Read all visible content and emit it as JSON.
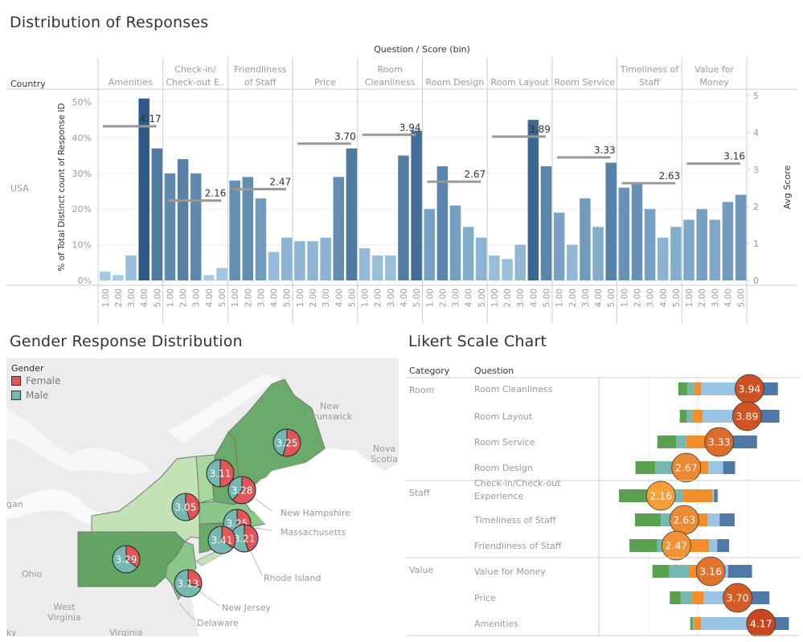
{
  "dashboard": {
    "top_title": "Distribution of Responses",
    "map_title": "Gender Response Distribution",
    "likert_title": "Likert Scale Chart"
  },
  "colors": {
    "bar_light": "#a9cfe8",
    "bar_dark": "#2c5985",
    "avg_line": "#999999",
    "female": "#e15759",
    "male": "#76b7b2",
    "likert_1": "#59a14f",
    "likert_2": "#76b7b2",
    "likert_3": "#f28e2b",
    "likert_4": "#9ac4e3",
    "likert_5": "#4e79a7",
    "state_dark": "#6aaa6a",
    "state_mid": "#8cc78a",
    "state_light": "#c3e3b5"
  },
  "chart_data": [
    {
      "type": "bar",
      "title": "Distribution of Responses",
      "column_header": "Question / Score (bin)",
      "row_header": "Country",
      "row_label": "USA",
      "ylabel": "% of Total Distinct count of Response ID",
      "y2label": "Avg Score",
      "ylim": [
        0,
        52
      ],
      "y_ticks": [
        "0%",
        "10%",
        "20%",
        "30%",
        "40%",
        "50%"
      ],
      "y2lim": [
        0,
        5
      ],
      "y2_ticks": [
        "0",
        "1",
        "2",
        "3",
        "4",
        "5"
      ],
      "bins": [
        "1.00",
        "2.00",
        "3.00",
        "4.00",
        "5.00"
      ],
      "questions": [
        {
          "name": "Amenities",
          "header": [
            "",
            "Amenities"
          ],
          "values": [
            2.5,
            1.5,
            7,
            51,
            37
          ],
          "avg": 4.17,
          "avg_label": "4.17"
        },
        {
          "name": "Check-in/Check-out Experience",
          "header": [
            "Check-in/",
            "Check-out E.."
          ],
          "values": [
            30,
            34,
            30,
            1.5,
            3.5
          ],
          "avg": 2.16,
          "avg_label": "2.16"
        },
        {
          "name": "Friendliness of Staff",
          "header": [
            "Friendliness",
            "of Staff"
          ],
          "values": [
            28,
            29,
            23,
            8,
            12
          ],
          "avg": 2.47,
          "avg_label": "2.47"
        },
        {
          "name": "Price",
          "header": [
            "",
            "Price"
          ],
          "values": [
            11,
            11,
            12,
            29,
            37
          ],
          "avg": 3.7,
          "avg_label": "3.70"
        },
        {
          "name": "Room Cleanliness",
          "header": [
            "Room",
            "Cleanliness"
          ],
          "values": [
            9,
            7,
            7,
            35,
            42
          ],
          "avg": 3.94,
          "avg_label": "3.94"
        },
        {
          "name": "Room Design",
          "header": [
            "",
            "Room Design"
          ],
          "values": [
            20,
            32,
            21,
            15,
            12
          ],
          "avg": 2.67,
          "avg_label": "2.67"
        },
        {
          "name": "Room Layout",
          "header": [
            "",
            "Room Layout"
          ],
          "values": [
            7,
            6,
            10,
            45,
            32
          ],
          "avg": 3.89,
          "avg_label": "3.89"
        },
        {
          "name": "Room Service",
          "header": [
            "",
            "Room Service"
          ],
          "values": [
            19,
            10,
            23,
            15,
            33
          ],
          "avg": 3.33,
          "avg_label": "3.33"
        },
        {
          "name": "Timeliness of Staff",
          "header": [
            "Timeliness of",
            "Staff"
          ],
          "values": [
            26,
            27,
            20,
            12,
            15
          ],
          "avg": 2.63,
          "avg_label": "2.63"
        },
        {
          "name": "Value for Money",
          "header": [
            "Value for",
            "Money"
          ],
          "values": [
            17,
            20,
            17,
            22,
            24
          ],
          "avg": 3.16,
          "avg_label": "3.16"
        }
      ]
    },
    {
      "type": "pie",
      "title": "Gender Response Distribution",
      "legend_title": "Gender",
      "legend": [
        {
          "label": "Female",
          "color": "#e15759"
        },
        {
          "label": "Male",
          "color": "#76b7b2"
        }
      ],
      "states": [
        {
          "name": "Maine",
          "avg_label": "3.25",
          "female_share": 0.55
        },
        {
          "name": "Vermont",
          "avg_label": "3.11",
          "female_share": 0.5
        },
        {
          "name": "New Hampshire",
          "avg_label": "3.28",
          "female_share": 0.62
        },
        {
          "name": "New York",
          "avg_label": "3.05",
          "female_share": 0.45
        },
        {
          "name": "Massachusetts",
          "avg_label": "3.25",
          "female_share": 0.5
        },
        {
          "name": "Rhode Island",
          "avg_label": "3.21",
          "female_share": 0.45
        },
        {
          "name": "Connecticut",
          "avg_label": "3.41",
          "female_share": 0.35
        },
        {
          "name": "Pennsylvania",
          "avg_label": "3.29",
          "female_share": 0.35
        },
        {
          "name": "New Jersey",
          "avg_label": "3.13",
          "female_share": 0.3
        }
      ],
      "map_labels": [
        "New Brunswick",
        "Nova Scotia",
        "New Hampshire",
        "Massachusetts",
        "Rhode Island",
        "New Jersey",
        "Delaware",
        "Ohio",
        "West Virginia",
        "Virginia",
        "gan",
        "ky"
      ]
    },
    {
      "type": "bar",
      "title": "Likert Scale Chart",
      "headers": {
        "category": "Category",
        "question": "Question"
      },
      "groups": [
        {
          "category": "Room",
          "rows": [
            {
              "question": [
                "Room Cleanliness"
              ],
              "avg_label": "3.94",
              "dist": [
                9,
                7,
                7,
                35,
                42
              ]
            },
            {
              "question": [
                "Room Layout"
              ],
              "avg_label": "3.89",
              "dist": [
                7,
                6,
                10,
                45,
                32
              ]
            },
            {
              "question": [
                "Room Service"
              ],
              "avg_label": "3.33",
              "dist": [
                19,
                10,
                23,
                15,
                33
              ]
            },
            {
              "question": [
                "Room Design"
              ],
              "avg_label": "2.67",
              "dist": [
                20,
                32,
                21,
                15,
                12
              ]
            }
          ]
        },
        {
          "category": "Staff",
          "rows": [
            {
              "question": [
                "Check-in/Check-out",
                "Experience"
              ],
              "avg_label": "2.16",
              "dist": [
                30,
                34,
                30,
                1.5,
                3.5
              ]
            },
            {
              "question": [
                "Timeliness of Staff"
              ],
              "avg_label": "2.63",
              "dist": [
                26,
                27,
                20,
                12,
                15
              ]
            },
            {
              "question": [
                "Friendliness of Staff"
              ],
              "avg_label": "2.47",
              "dist": [
                28,
                29,
                23,
                8,
                12
              ]
            }
          ]
        },
        {
          "category": "Value",
          "rows": [
            {
              "question": [
                "Value for Money"
              ],
              "avg_label": "3.16",
              "dist": [
                17,
                20,
                17,
                22,
                24
              ]
            },
            {
              "question": [
                "Price"
              ],
              "avg_label": "3.70",
              "dist": [
                11,
                11,
                12,
                29,
                37
              ]
            },
            {
              "question": [
                "Amenities"
              ],
              "avg_label": "4.17",
              "dist": [
                2.5,
                1.5,
                7,
                51,
                37
              ]
            }
          ]
        }
      ]
    }
  ]
}
